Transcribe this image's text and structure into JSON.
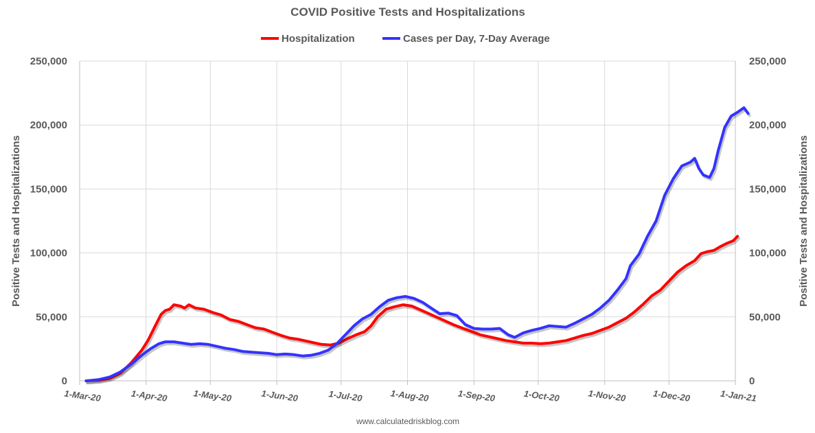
{
  "chart_data": {
    "type": "line",
    "title": "COVID Positive Tests and Hospitalizations",
    "ylabel": "Positive Tests and Hospitalizations",
    "y2label": "Positive Tests and Hospitalizations",
    "source": "www.calculatedriskblog.com",
    "ylim": [
      0,
      250000
    ],
    "yticks": [
      0,
      50000,
      100000,
      150000,
      200000,
      250000
    ],
    "ytick_labels": [
      "0",
      "50,000",
      "100,000",
      "150,000",
      "200,000",
      "250,000"
    ],
    "xlim": [
      "2020-03-01",
      "2021-01-01"
    ],
    "xticks": [
      "2020-03-01",
      "2020-04-01",
      "2020-05-01",
      "2020-06-01",
      "2020-07-01",
      "2020-08-01",
      "2020-09-01",
      "2020-10-01",
      "2020-11-01",
      "2020-12-01",
      "2021-01-01"
    ],
    "xtick_labels": [
      "1-Mar-20",
      "1-Apr-20",
      "1-May-20",
      "1-Jun-20",
      "1-Jul-20",
      "1-Aug-20",
      "1-Sep-20",
      "1-Oct-20",
      "1-Nov-20",
      "1-Dec-20",
      "1-Jan-21"
    ],
    "grid": true,
    "legend_position": "top",
    "series": [
      {
        "name": "Hospitalization",
        "color": "#ff0000",
        "points": [
          [
            "2020-03-04",
            0
          ],
          [
            "2020-03-10",
            500
          ],
          [
            "2020-03-15",
            2000
          ],
          [
            "2020-03-20",
            6000
          ],
          [
            "2020-03-25",
            14000
          ],
          [
            "2020-03-30",
            24000
          ],
          [
            "2020-04-02",
            32000
          ],
          [
            "2020-04-05",
            42000
          ],
          [
            "2020-04-08",
            52000
          ],
          [
            "2020-04-10",
            55000
          ],
          [
            "2020-04-12",
            56000
          ],
          [
            "2020-04-14",
            59500
          ],
          [
            "2020-04-17",
            58500
          ],
          [
            "2020-04-19",
            57000
          ],
          [
            "2020-04-21",
            59500
          ],
          [
            "2020-04-24",
            57000
          ],
          [
            "2020-04-28",
            56000
          ],
          [
            "2020-05-02",
            53500
          ],
          [
            "2020-05-06",
            51500
          ],
          [
            "2020-05-10",
            48000
          ],
          [
            "2020-05-14",
            46500
          ],
          [
            "2020-05-18",
            44000
          ],
          [
            "2020-05-22",
            41500
          ],
          [
            "2020-05-26",
            40500
          ],
          [
            "2020-05-30",
            38000
          ],
          [
            "2020-06-03",
            35500
          ],
          [
            "2020-06-07",
            33500
          ],
          [
            "2020-06-11",
            32500
          ],
          [
            "2020-06-15",
            31000
          ],
          [
            "2020-06-19",
            29500
          ],
          [
            "2020-06-22",
            28500
          ],
          [
            "2020-06-26",
            28000
          ],
          [
            "2020-06-30",
            29500
          ],
          [
            "2020-07-04",
            33000
          ],
          [
            "2020-07-08",
            36000
          ],
          [
            "2020-07-12",
            38500
          ],
          [
            "2020-07-15",
            43000
          ],
          [
            "2020-07-18",
            50000
          ],
          [
            "2020-07-22",
            56000
          ],
          [
            "2020-07-26",
            58000
          ],
          [
            "2020-07-30",
            59500
          ],
          [
            "2020-08-03",
            58500
          ],
          [
            "2020-08-07",
            55500
          ],
          [
            "2020-08-11",
            52500
          ],
          [
            "2020-08-15",
            49500
          ],
          [
            "2020-08-19",
            46500
          ],
          [
            "2020-08-23",
            43500
          ],
          [
            "2020-08-27",
            41000
          ],
          [
            "2020-08-31",
            38500
          ],
          [
            "2020-09-04",
            36000
          ],
          [
            "2020-09-08",
            34500
          ],
          [
            "2020-09-12",
            33000
          ],
          [
            "2020-09-16",
            31500
          ],
          [
            "2020-09-20",
            30500
          ],
          [
            "2020-09-24",
            29500
          ],
          [
            "2020-09-28",
            29500
          ],
          [
            "2020-10-02",
            29000
          ],
          [
            "2020-10-06",
            29500
          ],
          [
            "2020-10-10",
            30500
          ],
          [
            "2020-10-14",
            31500
          ],
          [
            "2020-10-18",
            33500
          ],
          [
            "2020-10-22",
            35500
          ],
          [
            "2020-10-26",
            37000
          ],
          [
            "2020-10-30",
            39500
          ],
          [
            "2020-11-03",
            42000
          ],
          [
            "2020-11-07",
            45500
          ],
          [
            "2020-11-11",
            49000
          ],
          [
            "2020-11-15",
            54000
          ],
          [
            "2020-11-19",
            60000
          ],
          [
            "2020-11-23",
            66500
          ],
          [
            "2020-11-27",
            71000
          ],
          [
            "2020-12-01",
            78000
          ],
          [
            "2020-12-05",
            85000
          ],
          [
            "2020-12-09",
            90000
          ],
          [
            "2020-12-13",
            94000
          ],
          [
            "2020-12-16",
            99500
          ],
          [
            "2020-12-19",
            101000
          ],
          [
            "2020-12-22",
            102000
          ],
          [
            "2020-12-25",
            105000
          ],
          [
            "2020-12-28",
            107500
          ],
          [
            "2020-12-31",
            109500
          ],
          [
            "2021-01-02",
            113000
          ]
        ]
      },
      {
        "name": "Cases per Day, 7-Day Average",
        "color": "#3333ff",
        "points": [
          [
            "2020-03-04",
            0
          ],
          [
            "2020-03-10",
            1000
          ],
          [
            "2020-03-15",
            3000
          ],
          [
            "2020-03-20",
            7000
          ],
          [
            "2020-03-25",
            13000
          ],
          [
            "2020-03-30",
            20000
          ],
          [
            "2020-04-03",
            25000
          ],
          [
            "2020-04-07",
            29000
          ],
          [
            "2020-04-10",
            30500
          ],
          [
            "2020-04-14",
            30500
          ],
          [
            "2020-04-18",
            29500
          ],
          [
            "2020-04-22",
            28500
          ],
          [
            "2020-04-26",
            29000
          ],
          [
            "2020-04-30",
            28500
          ],
          [
            "2020-05-04",
            27000
          ],
          [
            "2020-05-08",
            25500
          ],
          [
            "2020-05-12",
            24500
          ],
          [
            "2020-05-16",
            23000
          ],
          [
            "2020-05-20",
            22500
          ],
          [
            "2020-05-24",
            22000
          ],
          [
            "2020-05-28",
            21500
          ],
          [
            "2020-06-01",
            20500
          ],
          [
            "2020-06-05",
            21000
          ],
          [
            "2020-06-09",
            20500
          ],
          [
            "2020-06-13",
            19500
          ],
          [
            "2020-06-17",
            20000
          ],
          [
            "2020-06-21",
            21500
          ],
          [
            "2020-06-25",
            24000
          ],
          [
            "2020-06-29",
            29000
          ],
          [
            "2020-07-03",
            36000
          ],
          [
            "2020-07-07",
            43000
          ],
          [
            "2020-07-11",
            48500
          ],
          [
            "2020-07-15",
            52000
          ],
          [
            "2020-07-19",
            58000
          ],
          [
            "2020-07-23",
            63000
          ],
          [
            "2020-07-27",
            65000
          ],
          [
            "2020-07-31",
            66000
          ],
          [
            "2020-08-04",
            64500
          ],
          [
            "2020-08-08",
            61500
          ],
          [
            "2020-08-12",
            57000
          ],
          [
            "2020-08-16",
            52500
          ],
          [
            "2020-08-20",
            53000
          ],
          [
            "2020-08-24",
            51000
          ],
          [
            "2020-08-28",
            44000
          ],
          [
            "2020-09-01",
            41000
          ],
          [
            "2020-09-05",
            40500
          ],
          [
            "2020-09-09",
            40500
          ],
          [
            "2020-09-13",
            41000
          ],
          [
            "2020-09-17",
            36000
          ],
          [
            "2020-09-20",
            34000
          ],
          [
            "2020-09-24",
            37500
          ],
          [
            "2020-09-28",
            39500
          ],
          [
            "2020-10-02",
            41000
          ],
          [
            "2020-10-06",
            43000
          ],
          [
            "2020-10-10",
            42500
          ],
          [
            "2020-10-14",
            42000
          ],
          [
            "2020-10-18",
            45000
          ],
          [
            "2020-10-22",
            48500
          ],
          [
            "2020-10-26",
            52000
          ],
          [
            "2020-10-30",
            57000
          ],
          [
            "2020-11-03",
            63000
          ],
          [
            "2020-11-07",
            71000
          ],
          [
            "2020-11-11",
            80000
          ],
          [
            "2020-11-13",
            90000
          ],
          [
            "2020-11-17",
            99000
          ],
          [
            "2020-11-21",
            113000
          ],
          [
            "2020-11-25",
            125000
          ],
          [
            "2020-11-29",
            145000
          ],
          [
            "2020-12-03",
            158000
          ],
          [
            "2020-12-07",
            168000
          ],
          [
            "2020-12-11",
            171000
          ],
          [
            "2020-12-13",
            174000
          ],
          [
            "2020-12-15",
            166000
          ],
          [
            "2020-12-17",
            161000
          ],
          [
            "2020-12-20",
            159000
          ],
          [
            "2020-12-22",
            166000
          ],
          [
            "2020-12-24",
            180000
          ],
          [
            "2020-12-27",
            198000
          ],
          [
            "2020-12-30",
            207000
          ],
          [
            "2021-01-02",
            210000
          ],
          [
            "2021-01-05",
            213500
          ],
          [
            "2021-01-07",
            209000
          ]
        ]
      }
    ]
  }
}
